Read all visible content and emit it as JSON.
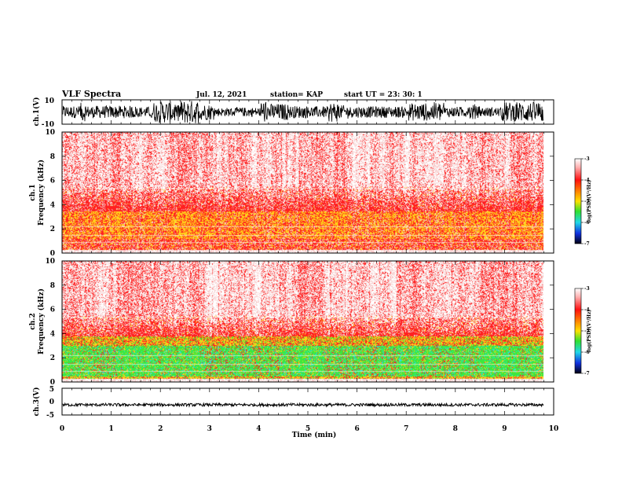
{
  "header": {
    "title": "VLF Spectra",
    "date": "Jul. 12, 2021",
    "station": "station= KAP",
    "start": "start UT = 23: 30: 1"
  },
  "chart_data": [
    {
      "name": "ch1-waveform",
      "type": "line",
      "ylabel": "ch.1(V)",
      "ylim": [
        -10,
        10
      ],
      "yticks": [
        "10",
        "-10"
      ],
      "x_range_min": [
        0,
        9.8
      ]
    },
    {
      "name": "ch1-spectrogram",
      "type": "heatmap",
      "ylabel": "ch.1\nFrequency (kHz)",
      "ylabel_lines": [
        "ch.1",
        "Frequency (kHz)"
      ],
      "ylim": [
        0,
        10
      ],
      "yticks": [
        "0",
        "2",
        "4",
        "6",
        "8",
        "10"
      ],
      "x_range_min": [
        0,
        9.8
      ],
      "band_profile_khz": {
        "yellow_band": [
          1.2,
          3.5
        ],
        "red_upper_edge": 5.5,
        "faint_above": 10
      },
      "colorbar": {
        "label": "log(PSD)(V²/Hz)",
        "range": [
          -7,
          -3
        ],
        "ticks": [
          "-3",
          "-4",
          "-5",
          "-6",
          "-7"
        ]
      }
    },
    {
      "name": "ch2-spectrogram",
      "type": "heatmap",
      "ylabel": "ch.2\nFrequency (kHz)",
      "ylabel_lines": [
        "ch.2",
        "Frequency (kHz)"
      ],
      "ylim": [
        0,
        10
      ],
      "yticks": [
        "0",
        "2",
        "4",
        "6",
        "8",
        "10"
      ],
      "x_range_min": [
        0,
        9.8
      ],
      "band_profile_khz": {
        "green_band": [
          0.5,
          3.0
        ],
        "yellow_band": [
          3.0,
          3.8
        ],
        "red_upper_edge": 5.5
      },
      "colorbar": {
        "label": "log(PSD)(V²/Hz)",
        "range": [
          -7,
          -3
        ],
        "ticks": [
          "-3",
          "-4",
          "-5",
          "-6",
          "-7"
        ]
      }
    },
    {
      "name": "ch3-waveform",
      "type": "line",
      "ylabel": "ch.3(V)",
      "ylim": [
        -5,
        5
      ],
      "yticks": [
        "5",
        "0",
        "-5"
      ],
      "level_v": -1.2,
      "x_range_min": [
        0,
        9.8
      ]
    }
  ],
  "xaxis": {
    "label": "Time (min)",
    "ticks": [
      "0",
      "1",
      "2",
      "3",
      "4",
      "5",
      "6",
      "7",
      "8",
      "9",
      "10"
    ],
    "range": [
      0,
      10
    ]
  },
  "colors": {
    "faint": "#f6c8c8",
    "red": "#ff2020",
    "yellow": "#ffd21a",
    "green": "#3ce83c",
    "cyan": "#28e0e0"
  }
}
